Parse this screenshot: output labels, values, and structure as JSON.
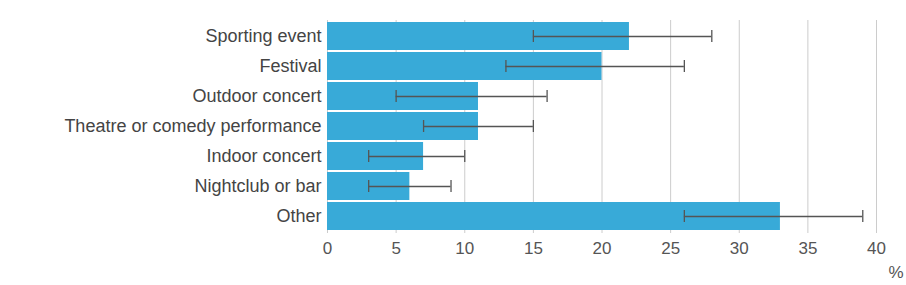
{
  "chart_data": {
    "type": "bar",
    "orientation": "horizontal",
    "categories": [
      "Sporting event",
      "Festival",
      "Outdoor concert",
      "Theatre or comedy performance",
      "Indoor concert",
      "Nightclub or bar",
      "Other"
    ],
    "values": [
      22,
      20,
      11,
      11,
      7,
      6,
      33
    ],
    "error_lower": [
      15,
      13,
      5,
      7,
      3,
      3,
      26
    ],
    "error_upper": [
      28,
      26,
      16,
      15,
      10,
      9,
      39
    ],
    "color": "#38aad8",
    "x_label": "%",
    "xlim": [
      0,
      40
    ],
    "xticks": [
      0,
      5,
      10,
      15,
      20,
      25,
      30,
      35,
      40
    ],
    "grid": true
  }
}
